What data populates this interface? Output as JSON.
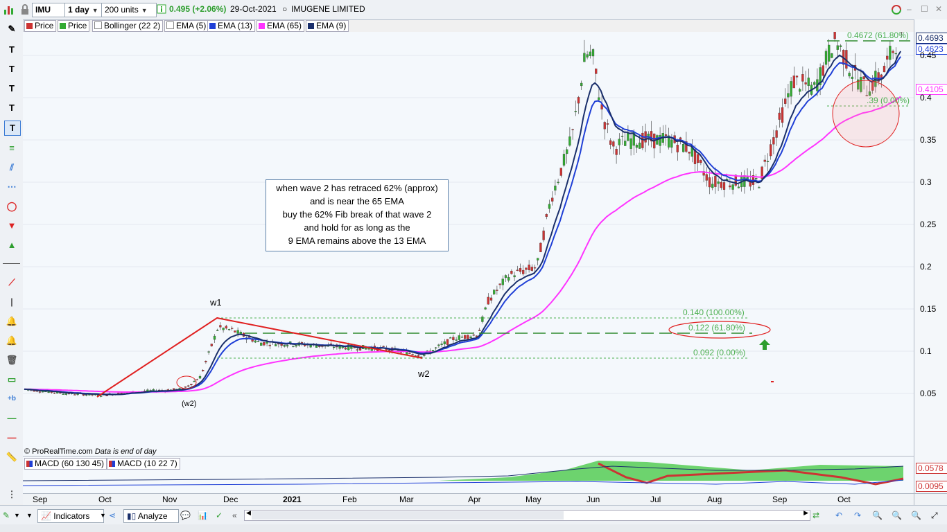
{
  "toolbar": {
    "symbol": "IMU",
    "timeframe": "1 day",
    "units": "200 units",
    "price": "0.495 (+2.06%)",
    "date": "29-Oct-2021",
    "company": "IMUGENE LIMITED"
  },
  "legend": [
    {
      "label": "Price",
      "color": "#cc3333"
    },
    {
      "label": "Price",
      "color": "#33aa33"
    },
    {
      "label": "Bollinger (22 2)",
      "color": "#ffffff"
    },
    {
      "label": "EMA (5)",
      "color": "#ffffff"
    },
    {
      "label": "EMA (13)",
      "color": "#1f3fd6"
    },
    {
      "label": "EMA (65)",
      "color": "#ff33ff"
    },
    {
      "label": "EMA (9)",
      "color": "#1a2f6b"
    }
  ],
  "annotation": {
    "line1": "when wave 2 has retraced 62% (approx)",
    "line2": "and is near the 65 EMA",
    "line3": "buy the 62% Fib break of that wave 2",
    "line4": "and hold for as long as the",
    "line5": "9 EMA remains above the 13 EMA"
  },
  "labels": {
    "w1": "w1",
    "w2": "w2",
    "w2_paren": "(w2)"
  },
  "fib": {
    "level_100": "0.140 (100.00%)",
    "level_618": "0.122 (61.80%)",
    "level_0": "0.092 (0.00%)",
    "upper_618": "0.4672 (61.80%)",
    "upper_0": ".39 (0.00%)"
  },
  "y_axis": {
    "ticks": [
      "0.45",
      "0.4",
      "0.35",
      "0.3",
      "0.25",
      "0.2",
      "0.15",
      "0.1",
      "0.05"
    ],
    "badge_price": "0.4693",
    "badge_ema13": "0.4623",
    "badge_ema65": "0.4105"
  },
  "footer_note": {
    "source": "© ProRealTime.com",
    "note": "Data is end of day"
  },
  "macd": {
    "legend1": "MACD (60 130 45)",
    "legend2": "MACD (10 22 7)",
    "badge1": "0.0578",
    "badge2": "0.0095"
  },
  "x_axis": {
    "ticks": [
      "Sep",
      "Oct",
      "Nov",
      "Dec",
      "2021",
      "Feb",
      "Mar",
      "Apr",
      "May",
      "Jun",
      "Jul",
      "Aug",
      "Sep",
      "Oct"
    ]
  },
  "bottombar": {
    "indicators": "Indicators",
    "analyze": "Analyze"
  },
  "colors": {
    "candle_up": "#33aa33",
    "candle_down": "#cc3333",
    "ema9": "#1a2f6b",
    "ema13": "#1f3fd6",
    "ema65": "#ff33ff",
    "fib_line": "#4caf50",
    "trend": "#e02020"
  }
}
